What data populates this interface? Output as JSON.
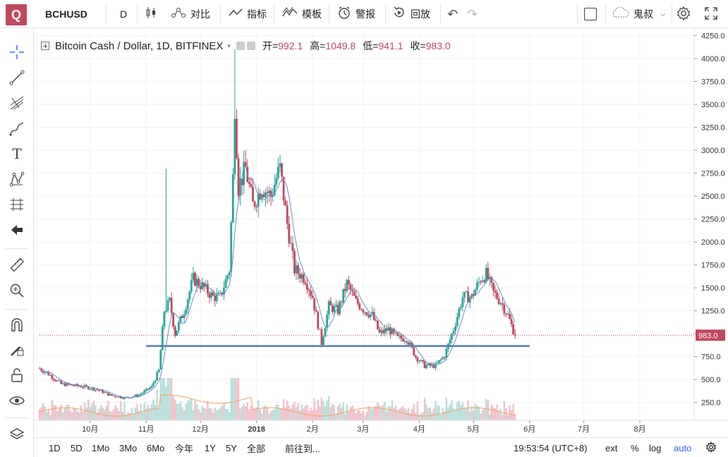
{
  "toolbar": {
    "logo": "Q",
    "symbol": "BCHUSD",
    "interval": "D",
    "compare": "对比",
    "indicators": "指标",
    "templates": "模板",
    "alert": "警报",
    "replay": "回放",
    "user": "鬼叔"
  },
  "legend": {
    "title": "Bitcoin Cash / Dollar, 1D, BITFINEX",
    "open_label": "开=",
    "open": "992.1",
    "high_label": "高=",
    "high": "1049.8",
    "low_label": "低=",
    "low": "941.1",
    "close_label": "收=",
    "close": "983.0"
  },
  "bottombar": {
    "ranges": [
      "1D",
      "5D",
      "1Mo",
      "3Mo",
      "6Mo",
      "今年",
      "1Y",
      "5Y",
      "全部"
    ],
    "goto": "前往到...",
    "clock": "19:53:54 (UTC+8)",
    "ext": "ext",
    "percent": "%",
    "log": "log",
    "auto": "auto"
  },
  "colors": {
    "up": "#26a69a",
    "down": "#c0485f",
    "support_line": "#4a7fb8",
    "ma_line": "#6f8fc9",
    "volume_ma": "#f0a35e",
    "price_line": "#c0485f"
  },
  "chart_data": {
    "type": "candlestick",
    "title": "Bitcoin Cash / Dollar, 1D, BITFINEX",
    "y_ticks": [
      250,
      500,
      750,
      1000,
      1250,
      1500,
      1750,
      2000,
      2250,
      2500,
      2750,
      3000,
      3250,
      3500,
      3750,
      4000,
      4250
    ],
    "y_tick_labels": [
      "250.0",
      "500.0",
      "750.0",
      "1000.0",
      "1250.0",
      "1500.0",
      "1750.0",
      "2000.0",
      "2250.0",
      "2500.0",
      "2750.0",
      "3000.0",
      "3250.0",
      "3500.0",
      "3750.0",
      "4000.0",
      "4250.0"
    ],
    "ylim": [
      55,
      4300
    ],
    "x_ticks": [
      "10月",
      "11月",
      "12月",
      "2018",
      "2月",
      "3月",
      "4月",
      "5月",
      "6月",
      "7月",
      "8月"
    ],
    "x_tick_dates": [
      "2017-10-01",
      "2017-11-01",
      "2017-12-01",
      "2018-01-01",
      "2018-02-01",
      "2018-03-01",
      "2018-04-01",
      "2018-05-01",
      "2018-06-01",
      "2018-07-01",
      "2018-08-01"
    ],
    "x_start": "2017-09-03",
    "x_end": "2018-08-31",
    "last_date": "2018-05-24",
    "last_price_label": "983.0",
    "last_price": 983.0,
    "support_level": 865,
    "support_start": "2017-11-01",
    "support_end": "2018-06-01",
    "price_anchors": [
      [
        "2017-09-03",
        620
      ],
      [
        "2017-09-08",
        560
      ],
      [
        "2017-09-15",
        450
      ],
      [
        "2017-09-20",
        440
      ],
      [
        "2017-09-28",
        420
      ],
      [
        "2017-10-05",
        390
      ],
      [
        "2017-10-12",
        330
      ],
      [
        "2017-10-20",
        300
      ],
      [
        "2017-10-28",
        330
      ],
      [
        "2017-11-04",
        420
      ],
      [
        "2017-11-08",
        600
      ],
      [
        "2017-11-11",
        1250
      ],
      [
        "2017-11-14",
        1350
      ],
      [
        "2017-11-17",
        1000
      ],
      [
        "2017-11-22",
        1250
      ],
      [
        "2017-11-27",
        1600
      ],
      [
        "2017-12-03",
        1500
      ],
      [
        "2017-12-08",
        1400
      ],
      [
        "2017-12-12",
        1400
      ],
      [
        "2017-12-17",
        1700
      ],
      [
        "2017-12-19",
        2700
      ],
      [
        "2017-12-20",
        3500
      ],
      [
        "2017-12-22",
        2600
      ],
      [
        "2017-12-26",
        2800
      ],
      [
        "2017-12-30",
        2400
      ],
      [
        "2018-01-04",
        2600
      ],
      [
        "2018-01-09",
        2500
      ],
      [
        "2018-01-12",
        2700
      ],
      [
        "2018-01-14",
        2800
      ],
      [
        "2018-01-18",
        2200
      ],
      [
        "2018-01-22",
        1700
      ],
      [
        "2018-01-28",
        1600
      ],
      [
        "2018-02-01",
        1400
      ],
      [
        "2018-02-05",
        1000
      ],
      [
        "2018-02-06",
        900
      ],
      [
        "2018-02-10",
        1300
      ],
      [
        "2018-02-15",
        1250
      ],
      [
        "2018-02-20",
        1550
      ],
      [
        "2018-02-25",
        1350
      ],
      [
        "2018-03-02",
        1250
      ],
      [
        "2018-03-06",
        1200
      ],
      [
        "2018-03-10",
        1000
      ],
      [
        "2018-03-15",
        1050
      ],
      [
        "2018-03-20",
        950
      ],
      [
        "2018-03-25",
        950
      ],
      [
        "2018-03-30",
        750
      ],
      [
        "2018-04-04",
        650
      ],
      [
        "2018-04-10",
        650
      ],
      [
        "2018-04-15",
        760
      ],
      [
        "2018-04-20",
        1050
      ],
      [
        "2018-04-25",
        1400
      ],
      [
        "2018-04-30",
        1400
      ],
      [
        "2018-05-05",
        1600
      ],
      [
        "2018-05-08",
        1650
      ],
      [
        "2018-05-12",
        1450
      ],
      [
        "2018-05-16",
        1350
      ],
      [
        "2018-05-20",
        1200
      ],
      [
        "2018-05-24",
        983
      ]
    ]
  }
}
